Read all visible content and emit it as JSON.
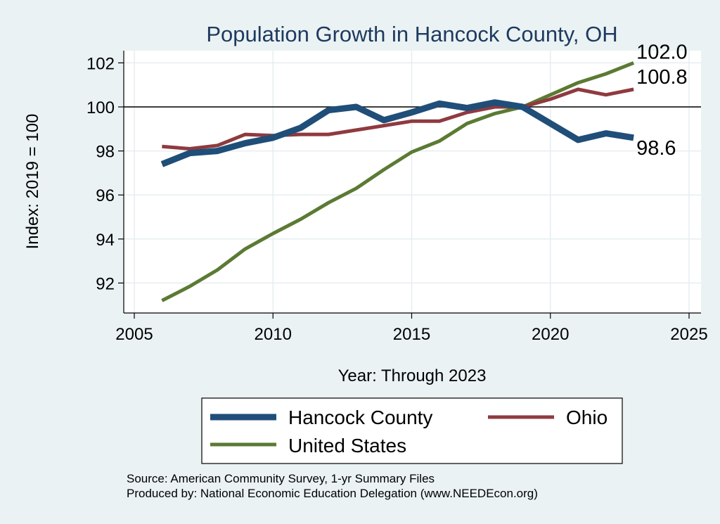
{
  "chart_data": {
    "type": "line",
    "title": "Population Growth in Hancock County, OH",
    "xlabel": "Year: Through 2023",
    "ylabel": "Index: 2019 = 100",
    "xlim": [
      2005,
      2025
    ],
    "ylim": [
      91,
      102.6
    ],
    "x_ticks": [
      2005,
      2010,
      2015,
      2020,
      2025
    ],
    "y_ticks": [
      92,
      94,
      96,
      98,
      100,
      102
    ],
    "reference_line": 100,
    "grid": true,
    "legend_position": "bottom",
    "x": [
      2006,
      2007,
      2008,
      2009,
      2010,
      2011,
      2012,
      2013,
      2014,
      2015,
      2016,
      2017,
      2018,
      2019,
      2020,
      2021,
      2022,
      2023
    ],
    "series": [
      {
        "name": "Hancock  County",
        "color": "#1f4e79",
        "width": "thick",
        "values": [
          97.4,
          97.9,
          98.0,
          98.35,
          98.6,
          99.05,
          99.85,
          100.0,
          99.4,
          99.75,
          100.15,
          99.95,
          100.2,
          100.0,
          99.25,
          98.5,
          98.8,
          98.6
        ],
        "end_label": "98.6"
      },
      {
        "name": "Ohio",
        "color": "#8f3a3f",
        "width": "medium",
        "values": [
          98.2,
          98.1,
          98.25,
          98.75,
          98.7,
          98.75,
          98.75,
          98.95,
          99.15,
          99.35,
          99.35,
          99.75,
          100.0,
          100.0,
          100.35,
          100.8,
          100.55,
          100.8
        ],
        "end_label": "100.8"
      },
      {
        "name": "United States",
        "color": "#5b7a33",
        "width": "medium",
        "values": [
          91.2,
          91.85,
          92.6,
          93.55,
          94.25,
          94.9,
          95.65,
          96.3,
          97.15,
          97.95,
          98.45,
          99.25,
          99.7,
          100.0,
          100.55,
          101.1,
          101.5,
          102.0
        ],
        "end_label": "102.0"
      }
    ]
  },
  "footer": {
    "source": "Source: American Community Survey, 1-yr Summary Files",
    "produced_by": "Produced by: National Economic Education Delegation (www.NEEDEcon.org)"
  }
}
